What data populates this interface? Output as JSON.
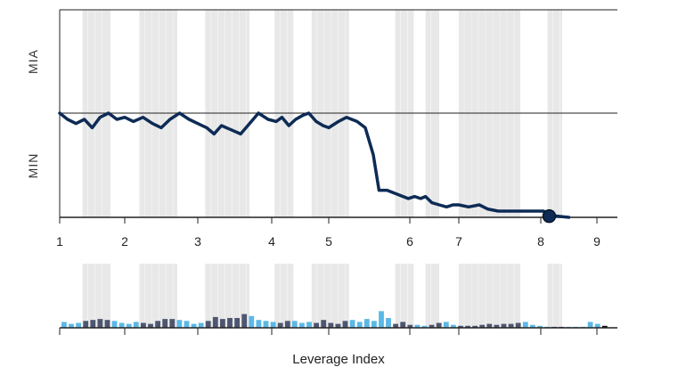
{
  "chart_data": {
    "type": "line",
    "xlabel": "Leverage Index",
    "ytop_label": "MIA",
    "ybottom_label": "MIN",
    "x_ticks": [
      "1",
      "2",
      "3",
      "4",
      "5",
      "6",
      "7",
      "8",
      "9"
    ],
    "grid": false,
    "colors": {
      "line": "#0d2b55",
      "band": "#e8e8e8",
      "bar_light": "#5bb8e6",
      "bar_dark": "#4e5670",
      "bar_last": "#111111",
      "axis": "#222222"
    },
    "line_series": {
      "y_range_note": "0 = MIN, 1 = MIA",
      "points": [
        [
          1.0,
          0.5
        ],
        [
          1.12,
          0.47
        ],
        [
          1.25,
          0.45
        ],
        [
          1.38,
          0.47
        ],
        [
          1.5,
          0.43
        ],
        [
          1.62,
          0.48
        ],
        [
          1.75,
          0.5
        ],
        [
          1.88,
          0.47
        ],
        [
          2.0,
          0.48
        ],
        [
          2.12,
          0.46
        ],
        [
          2.25,
          0.48
        ],
        [
          2.38,
          0.45
        ],
        [
          2.5,
          0.43
        ],
        [
          2.62,
          0.47
        ],
        [
          2.75,
          0.5
        ],
        [
          2.88,
          0.47
        ],
        [
          3.0,
          0.45
        ],
        [
          3.12,
          0.43
        ],
        [
          3.22,
          0.4
        ],
        [
          3.32,
          0.44
        ],
        [
          3.45,
          0.42
        ],
        [
          3.58,
          0.4
        ],
        [
          3.7,
          0.45
        ],
        [
          3.82,
          0.5
        ],
        [
          3.95,
          0.47
        ],
        [
          4.08,
          0.46
        ],
        [
          4.18,
          0.48
        ],
        [
          4.3,
          0.44
        ],
        [
          4.42,
          0.47
        ],
        [
          4.55,
          0.49
        ],
        [
          4.65,
          0.5
        ],
        [
          4.78,
          0.46
        ],
        [
          4.9,
          0.44
        ],
        [
          5.0,
          0.43
        ],
        [
          5.12,
          0.46
        ],
        [
          5.22,
          0.48
        ],
        [
          5.35,
          0.46
        ],
        [
          5.45,
          0.43
        ],
        [
          5.55,
          0.3
        ],
        [
          5.62,
          0.13
        ],
        [
          5.72,
          0.13
        ],
        [
          5.85,
          0.11
        ],
        [
          5.98,
          0.09
        ],
        [
          6.1,
          0.1
        ],
        [
          6.22,
          0.09
        ],
        [
          6.32,
          0.1
        ],
        [
          6.45,
          0.07
        ],
        [
          6.6,
          0.06
        ],
        [
          6.75,
          0.05
        ],
        [
          6.88,
          0.06
        ],
        [
          7.0,
          0.06
        ],
        [
          7.12,
          0.05
        ],
        [
          7.25,
          0.06
        ],
        [
          7.35,
          0.04
        ],
        [
          7.48,
          0.03
        ],
        [
          7.62,
          0.03
        ],
        [
          7.75,
          0.03
        ],
        [
          7.9,
          0.03
        ],
        [
          8.05,
          0.03
        ],
        [
          8.15,
          0.01
        ]
      ],
      "end_marker_x": 8.15
    },
    "shaded_bands": [
      [
        1.35,
        1.78
      ],
      [
        2.2,
        2.72
      ],
      [
        3.1,
        3.7
      ],
      [
        4.05,
        4.38
      ],
      [
        4.7,
        5.25
      ],
      [
        5.82,
        6.08
      ],
      [
        6.32,
        6.6
      ],
      [
        7.0,
        7.75
      ],
      [
        8.12,
        8.38
      ]
    ],
    "bar_series": {
      "values": [
        0.3,
        0.2,
        0.25,
        0.35,
        0.4,
        0.45,
        0.4,
        0.35,
        0.25,
        0.2,
        0.3,
        0.25,
        0.2,
        0.35,
        0.45,
        0.45,
        0.4,
        0.35,
        0.2,
        0.25,
        0.35,
        0.55,
        0.45,
        0.5,
        0.5,
        0.7,
        0.6,
        0.4,
        0.35,
        0.3,
        0.25,
        0.35,
        0.35,
        0.25,
        0.3,
        0.25,
        0.4,
        0.25,
        0.2,
        0.35,
        0.4,
        0.3,
        0.45,
        0.35,
        0.85,
        0.5,
        0.2,
        0.3,
        0.15,
        0.15,
        0.1,
        0.15,
        0.25,
        0.3,
        0.15,
        0.1,
        0.1,
        0.1,
        0.15,
        0.2,
        0.15,
        0.2,
        0.2,
        0.25,
        0.3,
        0.15,
        0.1,
        0.05,
        0.05,
        0.05,
        0.05,
        0.05,
        0.05,
        0.3,
        0.2,
        0.1
      ]
    }
  }
}
